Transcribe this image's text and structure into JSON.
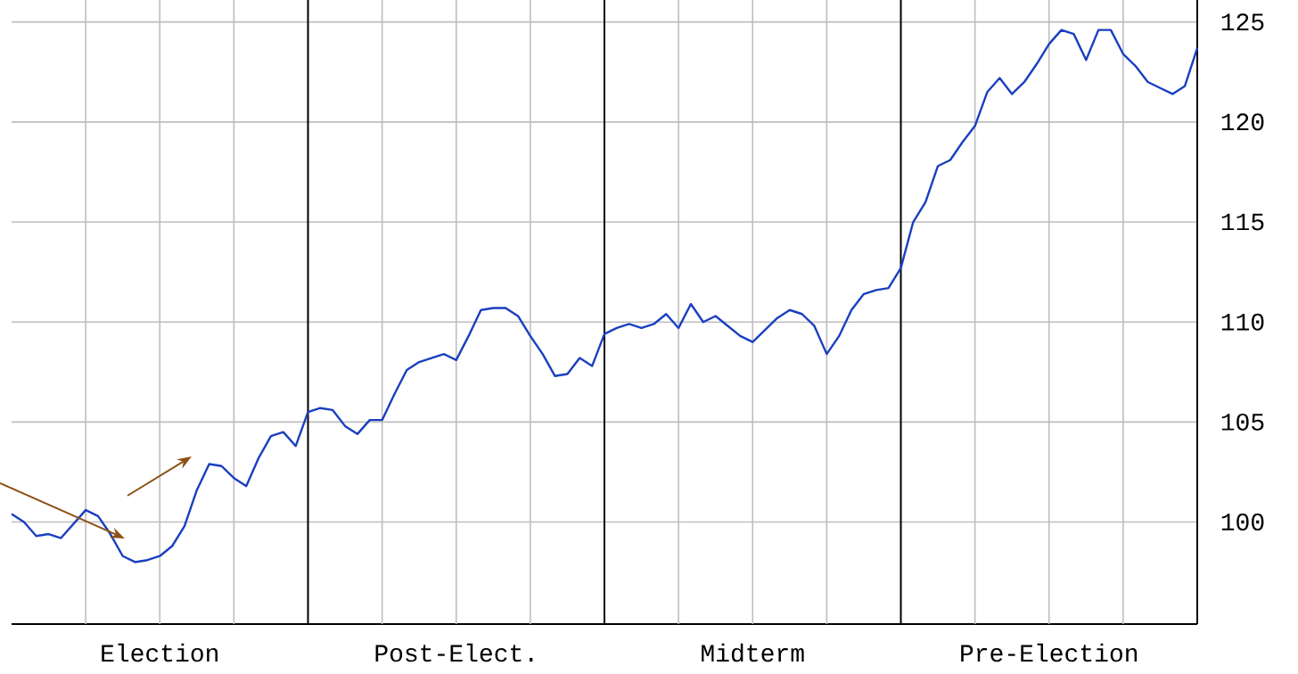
{
  "chart_data": {
    "type": "line",
    "categories": [
      null,
      null,
      null,
      null,
      null,
      null,
      null,
      null,
      null,
      null,
      null,
      null,
      "Election",
      null,
      null,
      null,
      null,
      null,
      null,
      null,
      null,
      null,
      null,
      null,
      null,
      null,
      null,
      null,
      null,
      null,
      null,
      null,
      null,
      null,
      null,
      null,
      "Post-Elect.",
      null,
      null,
      null,
      null,
      null,
      null,
      null,
      null,
      null,
      null,
      null,
      null,
      null,
      null,
      null,
      null,
      null,
      null,
      null,
      null,
      null,
      null,
      null,
      "Midterm",
      null,
      null,
      null,
      null,
      null,
      null,
      null,
      null,
      null,
      null,
      null,
      null,
      null,
      null,
      null,
      null,
      null,
      null,
      null,
      null,
      null,
      null,
      null,
      "Pre-Election",
      null,
      null,
      null,
      null,
      null,
      null,
      null,
      null,
      null,
      null,
      null,
      null
    ],
    "series": [
      {
        "color": "#1a3fbf",
        "values": [
          100.4,
          100.0,
          99.3,
          99.4,
          99.2,
          99.9,
          100.6,
          100.3,
          99.4,
          98.3,
          98.0,
          98.1,
          98.3,
          98.8,
          99.8,
          101.6,
          102.9,
          102.8,
          102.2,
          101.8,
          103.2,
          104.3,
          104.5,
          103.8,
          105.5,
          105.7,
          105.6,
          104.8,
          104.4,
          105.1,
          105.1,
          106.4,
          107.6,
          108.0,
          108.2,
          108.4,
          108.1,
          109.3,
          110.6,
          110.7,
          110.7,
          110.3,
          109.3,
          108.4,
          107.3,
          107.4,
          108.2,
          107.8,
          109.4,
          109.7,
          109.9,
          109.7,
          109.9,
          110.4,
          109.7,
          110.9,
          110.0,
          110.3,
          109.8,
          109.3,
          109.0,
          109.6,
          110.2,
          110.6,
          110.4,
          109.8,
          108.4,
          109.3,
          110.6,
          111.4,
          111.6,
          111.7,
          112.7,
          115.0,
          116.0,
          117.8,
          118.1,
          119.0,
          119.8,
          121.5,
          122.2,
          121.4,
          122.0,
          122.9,
          123.9,
          124.6,
          124.4,
          123.1,
          124.6,
          124.6,
          123.4,
          122.8,
          122.0,
          121.7,
          121.4,
          121.8,
          123.7
        ]
      }
    ],
    "ylim": [
      94.9,
      126.1
    ],
    "yticks": [
      100,
      105,
      110,
      115,
      120,
      125
    ],
    "grid": true,
    "line_style": "solid",
    "marker": "none"
  }
}
